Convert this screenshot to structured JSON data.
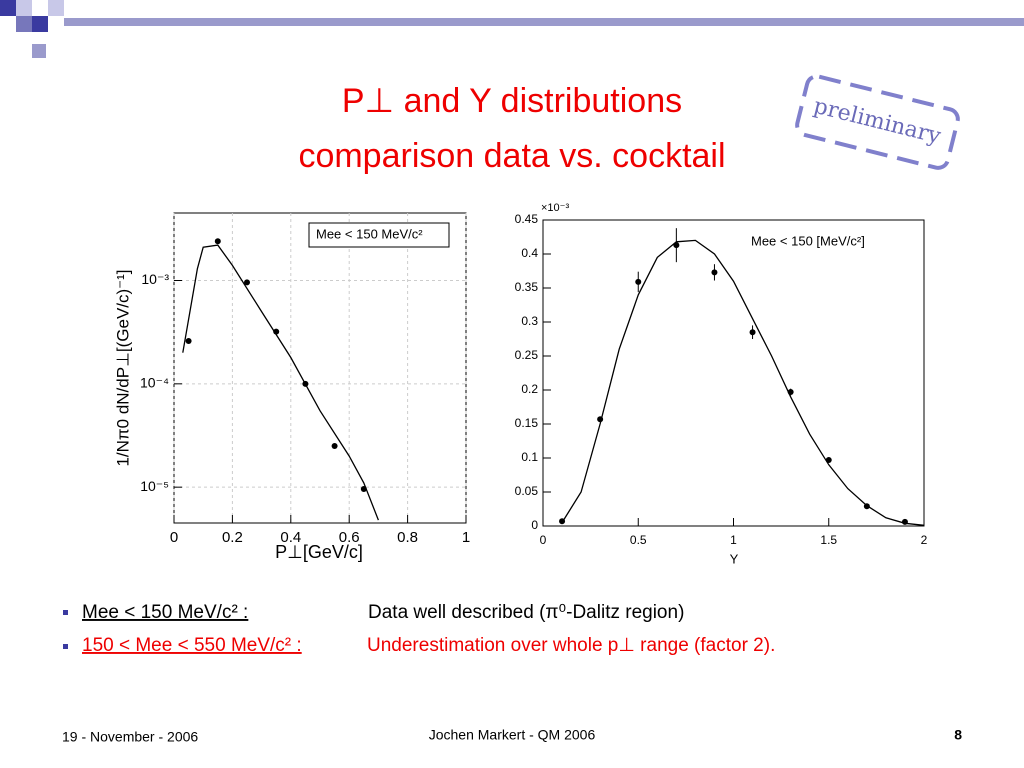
{
  "slide": {
    "title_line1": "P⊥ and Y distributions",
    "title_line2": "comparison data vs. cocktail",
    "stamp": "preliminary",
    "bullets": [
      {
        "label": "Mee < 150 MeV/c² :",
        "text": "Data well described (π⁰-Dalitz region)"
      },
      {
        "label": "150 < Mee <  550 MeV/c² :",
        "text": "Underestimation over whole p⊥ range (factor 2)."
      }
    ],
    "footer": {
      "date": "19 - November - 2006",
      "author": "Jochen Markert - QM 2006",
      "page": "8"
    }
  },
  "chart_data": [
    {
      "type": "scatter",
      "xlabel": "P⊥[GeV/c]",
      "ylabel": "1/Nπ0 dN/dP⊥[(GeV/c)⁻¹]",
      "log_y": true,
      "grid": true,
      "xlim": [
        0,
        1
      ],
      "xticks": [
        0,
        0.2,
        0.4,
        0.6,
        0.8,
        1
      ],
      "ylim": [
        4.5e-06,
        0.0045
      ],
      "yticks": [
        {
          "value": 1e-05,
          "label": "10⁻⁵"
        },
        {
          "value": 0.0001,
          "label": "10⁻⁴"
        },
        {
          "value": 0.001,
          "label": "10⁻³"
        }
      ],
      "series": [
        {
          "name": "Mee < 150 MeV/c²",
          "color": "#000000",
          "x": [
            0.05,
            0.15,
            0.25,
            0.35,
            0.45,
            0.55,
            0.65
          ],
          "values": [
            0.00026,
            0.0024,
            0.00096,
            0.00032,
            0.0001,
            2.5e-05,
            9.6e-06
          ]
        },
        {
          "color": "#000000",
          "line": true,
          "x": [
            0.03,
            0.08,
            0.1,
            0.15,
            0.2,
            0.3,
            0.4,
            0.5,
            0.6,
            0.65,
            0.7
          ],
          "values": [
            0.0002,
            0.0013,
            0.0021,
            0.0022,
            0.0014,
            0.0005,
            0.00018,
            5.5e-05,
            2e-05,
            1.1e-05,
            4.8e-06
          ]
        }
      ]
    },
    {
      "type": "scatter",
      "xlabel": "Y",
      "y_multiplier": "×10⁻³",
      "grid": false,
      "xlim": [
        0,
        2
      ],
      "xticks": [
        0,
        0.5,
        1,
        1.5,
        2
      ],
      "ylim": [
        0,
        0.45
      ],
      "yticks": [
        0,
        0.05,
        0.1,
        0.15,
        0.2,
        0.25,
        0.3,
        0.35,
        0.4,
        0.45
      ],
      "series": [
        {
          "name": "Mee < 150 [MeV/c²]",
          "color": "#000000",
          "x": [
            0.1,
            0.3,
            0.5,
            0.7,
            0.9,
            1.1,
            1.3,
            1.5,
            1.7,
            1.9
          ],
          "values": [
            0.007,
            0.157,
            0.359,
            0.413,
            0.373,
            0.285,
            0.197,
            0.097,
            0.029,
            0.006
          ],
          "errors": [
            0.003,
            0.004,
            0.015,
            0.025,
            0.012,
            0.01,
            0.005,
            0.004,
            0.003,
            0.002
          ]
        },
        {
          "color": "#000000",
          "line": true,
          "x": [
            0.1,
            0.2,
            0.3,
            0.4,
            0.5,
            0.6,
            0.7,
            0.8,
            0.9,
            1.0,
            1.1,
            1.2,
            1.3,
            1.4,
            1.5,
            1.6,
            1.7,
            1.8,
            1.9,
            2.0
          ],
          "values": [
            0.005,
            0.05,
            0.15,
            0.26,
            0.34,
            0.395,
            0.418,
            0.42,
            0.4,
            0.36,
            0.305,
            0.25,
            0.19,
            0.135,
            0.09,
            0.055,
            0.03,
            0.012,
            0.004,
            0.001
          ]
        }
      ]
    }
  ]
}
